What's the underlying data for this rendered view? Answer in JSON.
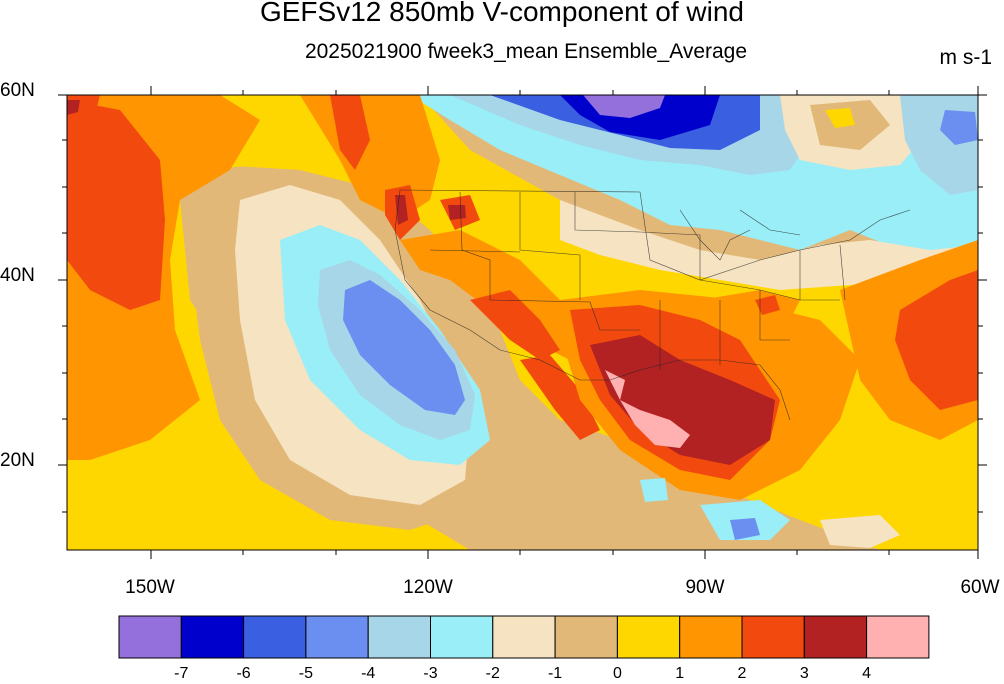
{
  "title": "GEFSv12 850mb V-component of wind",
  "subtitle": "2025021900 fweek3_mean Ensemble_Average",
  "units": "m s-1",
  "axes": {
    "lat_labels": [
      "60N",
      "40N",
      "20N"
    ],
    "lon_labels": [
      "150W",
      "120W",
      "90W",
      "60W"
    ]
  },
  "colorbar": {
    "colors": [
      "#9370DB",
      "#0000CD",
      "#3A5FE0",
      "#6A8FF0",
      "#A6D6E8",
      "#9AEEF7",
      "#F5E3C2",
      "#E2B878",
      "#FFD700",
      "#FF9500",
      "#F24A0E",
      "#B22222",
      "#FFB0B0"
    ],
    "labels": [
      "-7",
      "-6",
      "-5",
      "-4",
      "-3",
      "-2",
      "-1",
      "0",
      "1",
      "2",
      "3",
      "4"
    ]
  }
}
